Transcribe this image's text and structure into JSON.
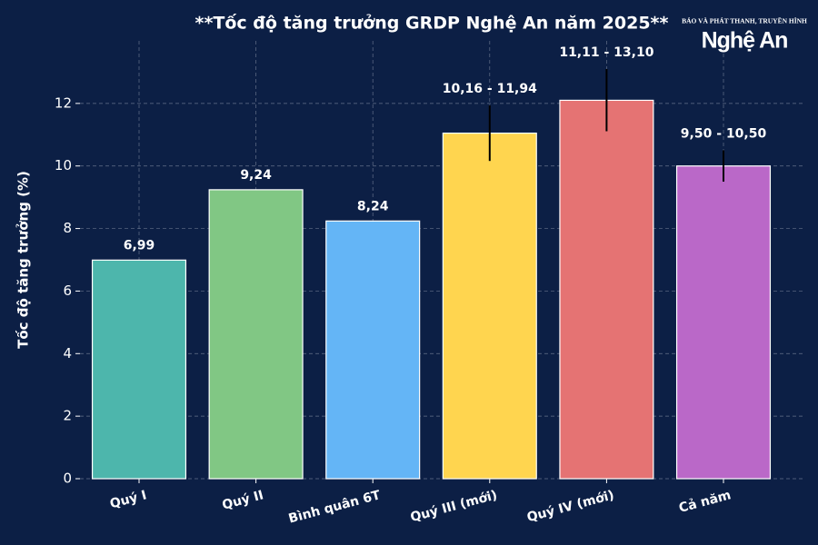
{
  "chart_data": {
    "type": "bar",
    "title": "**Tốc độ tăng trưởng GRDP Nghệ An năm 2025**",
    "y_label": "Tốc độ tăng trưởng (%)",
    "categories": [
      "Quý I",
      "Quý II",
      "Bình quân 6T",
      "Quý III (mới)",
      "Quý IV (mới)",
      "Cả năm"
    ],
    "values": [
      6.99,
      9.24,
      8.24,
      11.05,
      12.1,
      10.0
    ],
    "value_labels": [
      "6,99",
      "9,24",
      "8,24",
      null,
      null,
      null
    ],
    "ranges": [
      null,
      null,
      null,
      [
        10.16,
        11.94
      ],
      [
        11.11,
        13.1
      ],
      [
        9.5,
        10.5
      ]
    ],
    "range_labels": [
      null,
      null,
      null,
      "10,16 - 11,94",
      "11,11 - 13,10",
      "9,50 - 10,50"
    ],
    "colors": [
      "#4db6ac",
      "#81c784",
      "#64b5f6",
      "#ffd54f",
      "#e57373",
      "#ba68c8"
    ],
    "ylim": [
      0,
      14
    ],
    "yticks": [
      0,
      2,
      4,
      6,
      8,
      10,
      12
    ],
    "grid": true
  },
  "logo": {
    "top": "BÁO VÀ PHÁT THANH, TRUYỀN HÌNH",
    "name": "Nghệ An"
  }
}
